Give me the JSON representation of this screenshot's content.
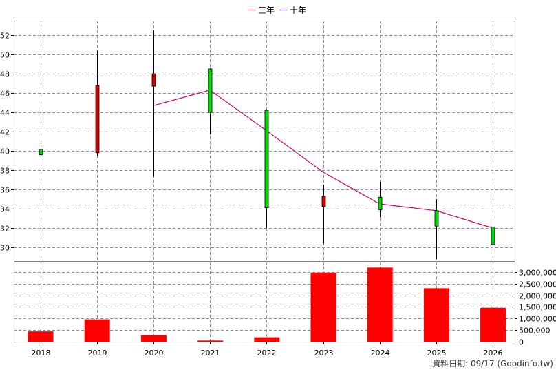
{
  "chart_data": [
    {
      "type": "candlestick",
      "categories": [
        "2018",
        "2019",
        "2020",
        "2021",
        "2022",
        "2023",
        "2024",
        "2025",
        "2026"
      ],
      "ohlc": [
        {
          "open": 39.6,
          "high": 40.6,
          "low": 38.2,
          "close": 40.1
        },
        {
          "open": 46.8,
          "high": 50.4,
          "low": 39.5,
          "close": 39.8
        },
        {
          "open": 48.0,
          "high": 52.5,
          "low": 37.3,
          "close": 46.7
        },
        {
          "open": 44.0,
          "high": 48.6,
          "low": 41.7,
          "close": 48.5
        },
        {
          "open": 34.1,
          "high": 44.3,
          "low": 32.0,
          "close": 44.2
        },
        {
          "open": 35.3,
          "high": 36.5,
          "low": 30.4,
          "close": 34.2
        },
        {
          "open": 33.9,
          "high": 36.8,
          "low": 33.1,
          "close": 35.2
        },
        {
          "open": 32.2,
          "high": 35.0,
          "low": 28.8,
          "close": 33.8
        },
        {
          "open": 30.3,
          "high": 32.9,
          "low": 29.9,
          "close": 32.1
        }
      ],
      "series": [
        {
          "name": "三年",
          "color": "#cc0066",
          "values": [
            null,
            null,
            44.7,
            46.3,
            42.1,
            37.8,
            34.5,
            33.8,
            32.0
          ]
        },
        {
          "name": "十年",
          "color": "#6600cc",
          "values": [
            null,
            null,
            null,
            null,
            null,
            null,
            null,
            null,
            null
          ]
        }
      ],
      "ylim": [
        28.5,
        53.5
      ],
      "yticks": [
        30,
        32,
        34,
        36,
        38,
        40,
        42,
        44,
        46,
        48,
        50,
        52
      ],
      "colors": {
        "up": "#00dd00",
        "down": "#cc0000",
        "wick": "#000000"
      },
      "grid": true,
      "legend": "top-center"
    },
    {
      "type": "bar",
      "categories": [
        "2018",
        "2019",
        "2020",
        "2021",
        "2022",
        "2023",
        "2024",
        "2025",
        "2026"
      ],
      "values": [
        440000,
        960000,
        280000,
        50000,
        190000,
        2970000,
        3190000,
        2300000,
        1460000
      ],
      "ylim": [
        0,
        3200000
      ],
      "yticks": [
        {
          "value": 0,
          "label": "0"
        },
        {
          "value": 500000,
          "label": "500,000"
        },
        {
          "value": 1000000,
          "label": "1,000,000"
        },
        {
          "value": 1500000,
          "label": "1,500,000"
        },
        {
          "value": 2000000,
          "label": "2,000,000"
        },
        {
          "value": 2500000,
          "label": "2,500,000"
        },
        {
          "value": 3000000,
          "label": "3,000,000"
        }
      ],
      "color": "#ff0000",
      "grid": true
    }
  ],
  "footer": {
    "text": "資料日期: 09/17  (Goodinfo.tw)"
  }
}
